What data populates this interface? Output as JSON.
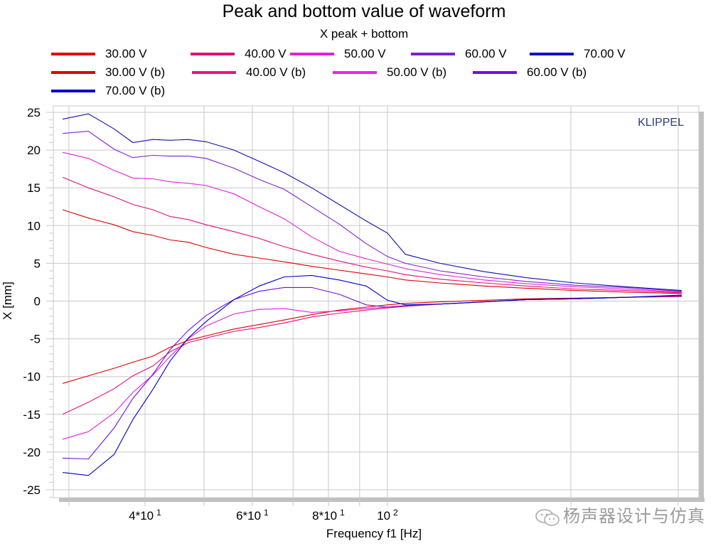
{
  "chart_data": {
    "type": "line",
    "title": "Peak and bottom value of waveform",
    "subtitle": "X  peak + bottom",
    "xlabel": "Frequency f1  [Hz]",
    "ylabel": "X  [mm]",
    "xscale": "log",
    "xlim": [
      28.3,
      324
    ],
    "ylim": [
      -26.5,
      26
    ],
    "grid": true,
    "legend_position": "top",
    "brand_label": "KLIPPEL",
    "x_ticks": [
      {
        "value": 40,
        "label": "4*10",
        "exp": "1"
      },
      {
        "value": 60,
        "label": "6*10",
        "exp": "1"
      },
      {
        "value": 80,
        "label": "8*10",
        "exp": "1"
      },
      {
        "value": 100,
        "label": "10",
        "exp": "2"
      },
      {
        "value": 200,
        "label": "",
        "exp": ""
      }
    ],
    "x_gridlines": [
      30,
      40,
      50,
      60,
      70,
      80,
      90,
      100,
      200,
      300
    ],
    "y_ticks": [
      25,
      20,
      15,
      10,
      5,
      0,
      -5,
      -10,
      -15,
      -20,
      -25
    ],
    "x": [
      29.3,
      32.3,
      35.6,
      38.2,
      41.2,
      44.0,
      47.1,
      50.4,
      56.0,
      61.6,
      67.7,
      75.1,
      83.3,
      92.3,
      100,
      107,
      122,
      144,
      169,
      203,
      246,
      304
    ],
    "series": [
      {
        "name": "30.00 V",
        "color": "#e00000",
        "values": [
          12.1,
          11.0,
          10.1,
          9.2,
          8.7,
          8.1,
          7.8,
          7.1,
          6.2,
          5.7,
          5.2,
          4.6,
          4.1,
          3.6,
          3.2,
          2.8,
          2.4,
          2.0,
          1.7,
          1.4,
          1.2,
          1.0
        ]
      },
      {
        "name": "40.00 V",
        "color": "#e0107a",
        "values": [
          16.4,
          15.0,
          13.8,
          12.8,
          12.1,
          11.2,
          10.8,
          10.1,
          9.2,
          8.3,
          7.2,
          6.2,
          5.3,
          4.5,
          4.0,
          3.5,
          2.9,
          2.4,
          2.0,
          1.6,
          1.4,
          1.1
        ]
      },
      {
        "name": "50.00 V",
        "color": "#e020e0",
        "values": [
          19.7,
          18.9,
          17.3,
          16.3,
          16.2,
          15.8,
          15.6,
          15.3,
          14.2,
          12.5,
          10.9,
          8.5,
          6.6,
          5.6,
          4.9,
          4.3,
          3.5,
          2.8,
          2.3,
          1.9,
          1.6,
          1.2
        ]
      },
      {
        "name": "60.00 V",
        "color": "#8020d0",
        "values": [
          22.2,
          22.5,
          20.1,
          19.0,
          19.3,
          19.2,
          19.2,
          18.9,
          17.6,
          16.1,
          14.8,
          12.5,
          10.2,
          7.6,
          5.9,
          5.0,
          4.0,
          3.2,
          2.6,
          2.1,
          1.8,
          1.3
        ]
      },
      {
        "name": "70.00 V",
        "color": "#1010b0",
        "values": [
          24.1,
          24.8,
          22.8,
          21.0,
          21.4,
          21.3,
          21.4,
          21.1,
          20.0,
          18.5,
          17.0,
          15.0,
          12.8,
          10.6,
          9.0,
          6.2,
          5.0,
          3.9,
          3.1,
          2.4,
          1.9,
          1.4
        ]
      },
      {
        "name": "30.00 V (b)",
        "color": "#e00000",
        "values": [
          -10.9,
          -9.9,
          -8.9,
          -8.1,
          -7.3,
          -6.1,
          -5.2,
          -4.6,
          -3.7,
          -3.1,
          -2.5,
          -1.8,
          -1.2,
          -0.8,
          -0.5,
          -0.3,
          -0.1,
          0.1,
          0.3,
          0.4,
          0.5,
          0.6
        ]
      },
      {
        "name": "40.00 V (b)",
        "color": "#e0107a",
        "values": [
          -15.0,
          -13.4,
          -11.6,
          -9.9,
          -8.6,
          -6.7,
          -5.5,
          -4.9,
          -4.0,
          -3.5,
          -2.9,
          -2.1,
          -1.6,
          -1.2,
          -0.9,
          -0.7,
          -0.4,
          -0.1,
          0.2,
          0.3,
          0.5,
          0.6
        ]
      },
      {
        "name": "50.00 V (b)",
        "color": "#e020e0",
        "values": [
          -18.3,
          -17.3,
          -14.8,
          -12.1,
          -9.8,
          -7.3,
          -5.0,
          -3.3,
          -1.7,
          -1.1,
          -1.0,
          -1.5,
          -1.3,
          -1.0,
          -0.8,
          -0.6,
          -0.4,
          -0.1,
          0.2,
          0.3,
          0.5,
          0.7
        ]
      },
      {
        "name": "60.00 V (b)",
        "color": "#7010e0",
        "values": [
          -20.8,
          -20.9,
          -16.8,
          -12.9,
          -9.7,
          -6.4,
          -3.9,
          -1.9,
          0.2,
          1.3,
          1.8,
          1.8,
          0.9,
          -0.5,
          -0.8,
          -0.6,
          -0.4,
          -0.1,
          0.2,
          0.3,
          0.5,
          0.7
        ]
      },
      {
        "name": "70.00 V (b)",
        "color": "#0000c8",
        "values": [
          -22.7,
          -23.1,
          -20.3,
          -15.7,
          -11.7,
          -7.9,
          -4.9,
          -2.7,
          0.2,
          2.0,
          3.2,
          3.4,
          2.8,
          2.0,
          0.1,
          -0.5,
          -0.4,
          -0.1,
          0.2,
          0.3,
          0.5,
          0.8
        ]
      }
    ]
  },
  "legend": [
    {
      "label": "30.00 V",
      "color": "#e00000"
    },
    {
      "label": "40.00 V",
      "color": "#e0107a"
    },
    {
      "label": "50.00 V",
      "color": "#e020e0"
    },
    {
      "label": "60.00 V",
      "color": "#8020d0"
    },
    {
      "label": "70.00 V",
      "color": "#1010c8"
    },
    {
      "label": "30.00 V (b)",
      "color": "#e00000"
    },
    {
      "label": "40.00 V (b)",
      "color": "#f01080"
    },
    {
      "label": "50.00 V (b)",
      "color": "#f020f0"
    },
    {
      "label": "60.00 V (b)",
      "color": "#7010e0"
    },
    {
      "label": "70.00 V (b)",
      "color": "#0000c8"
    }
  ],
  "watermark": "杨声器设计与仿真"
}
